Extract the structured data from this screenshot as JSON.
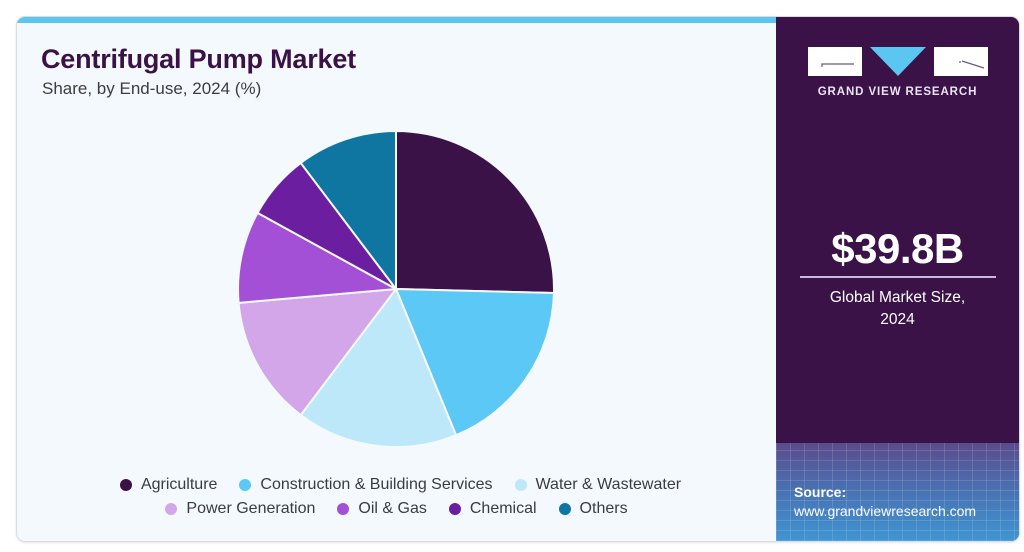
{
  "header": {
    "title": "Centrifugal Pump Market",
    "subtitle": "Share, by End-use, 2024 (%)"
  },
  "brand": {
    "name": "GRAND VIEW RESEARCH",
    "logo_colors": {
      "boxes": "#ffffff",
      "triangle": "#5bc6f2",
      "lines": "#3a1248"
    }
  },
  "sidebar": {
    "market_value": "$39.8B",
    "market_label_line1": "Global Market Size,",
    "market_label_line2": "2024",
    "source_heading": "Source:",
    "source_url": "www.grandviewresearch.com"
  },
  "colors": {
    "accent": "#5bc6f2",
    "panel": "#3a1248",
    "title": "#3a1248"
  },
  "chart_data": {
    "type": "pie",
    "title": "Centrifugal Pump Market",
    "subtitle": "Share, by End-use, 2024 (%)",
    "start_angle_deg": 0,
    "direction": "clockwise",
    "legend_position": "bottom",
    "slices": [
      {
        "label": "Agriculture",
        "value": 25.4,
        "color": "#3a1248"
      },
      {
        "label": "Construction & Building Services",
        "value": 18.4,
        "color": "#5bc8f5"
      },
      {
        "label": "Water & Wastewater",
        "value": 16.5,
        "color": "#bde8f9"
      },
      {
        "label": "Power Generation",
        "value": 13.3,
        "color": "#d3a6ea"
      },
      {
        "label": "Oil & Gas",
        "value": 9.4,
        "color": "#a450d6"
      },
      {
        "label": "Chemical",
        "value": 6.7,
        "color": "#6b1fa0"
      },
      {
        "label": "Others",
        "value": 10.3,
        "color": "#0e76a0"
      }
    ]
  }
}
